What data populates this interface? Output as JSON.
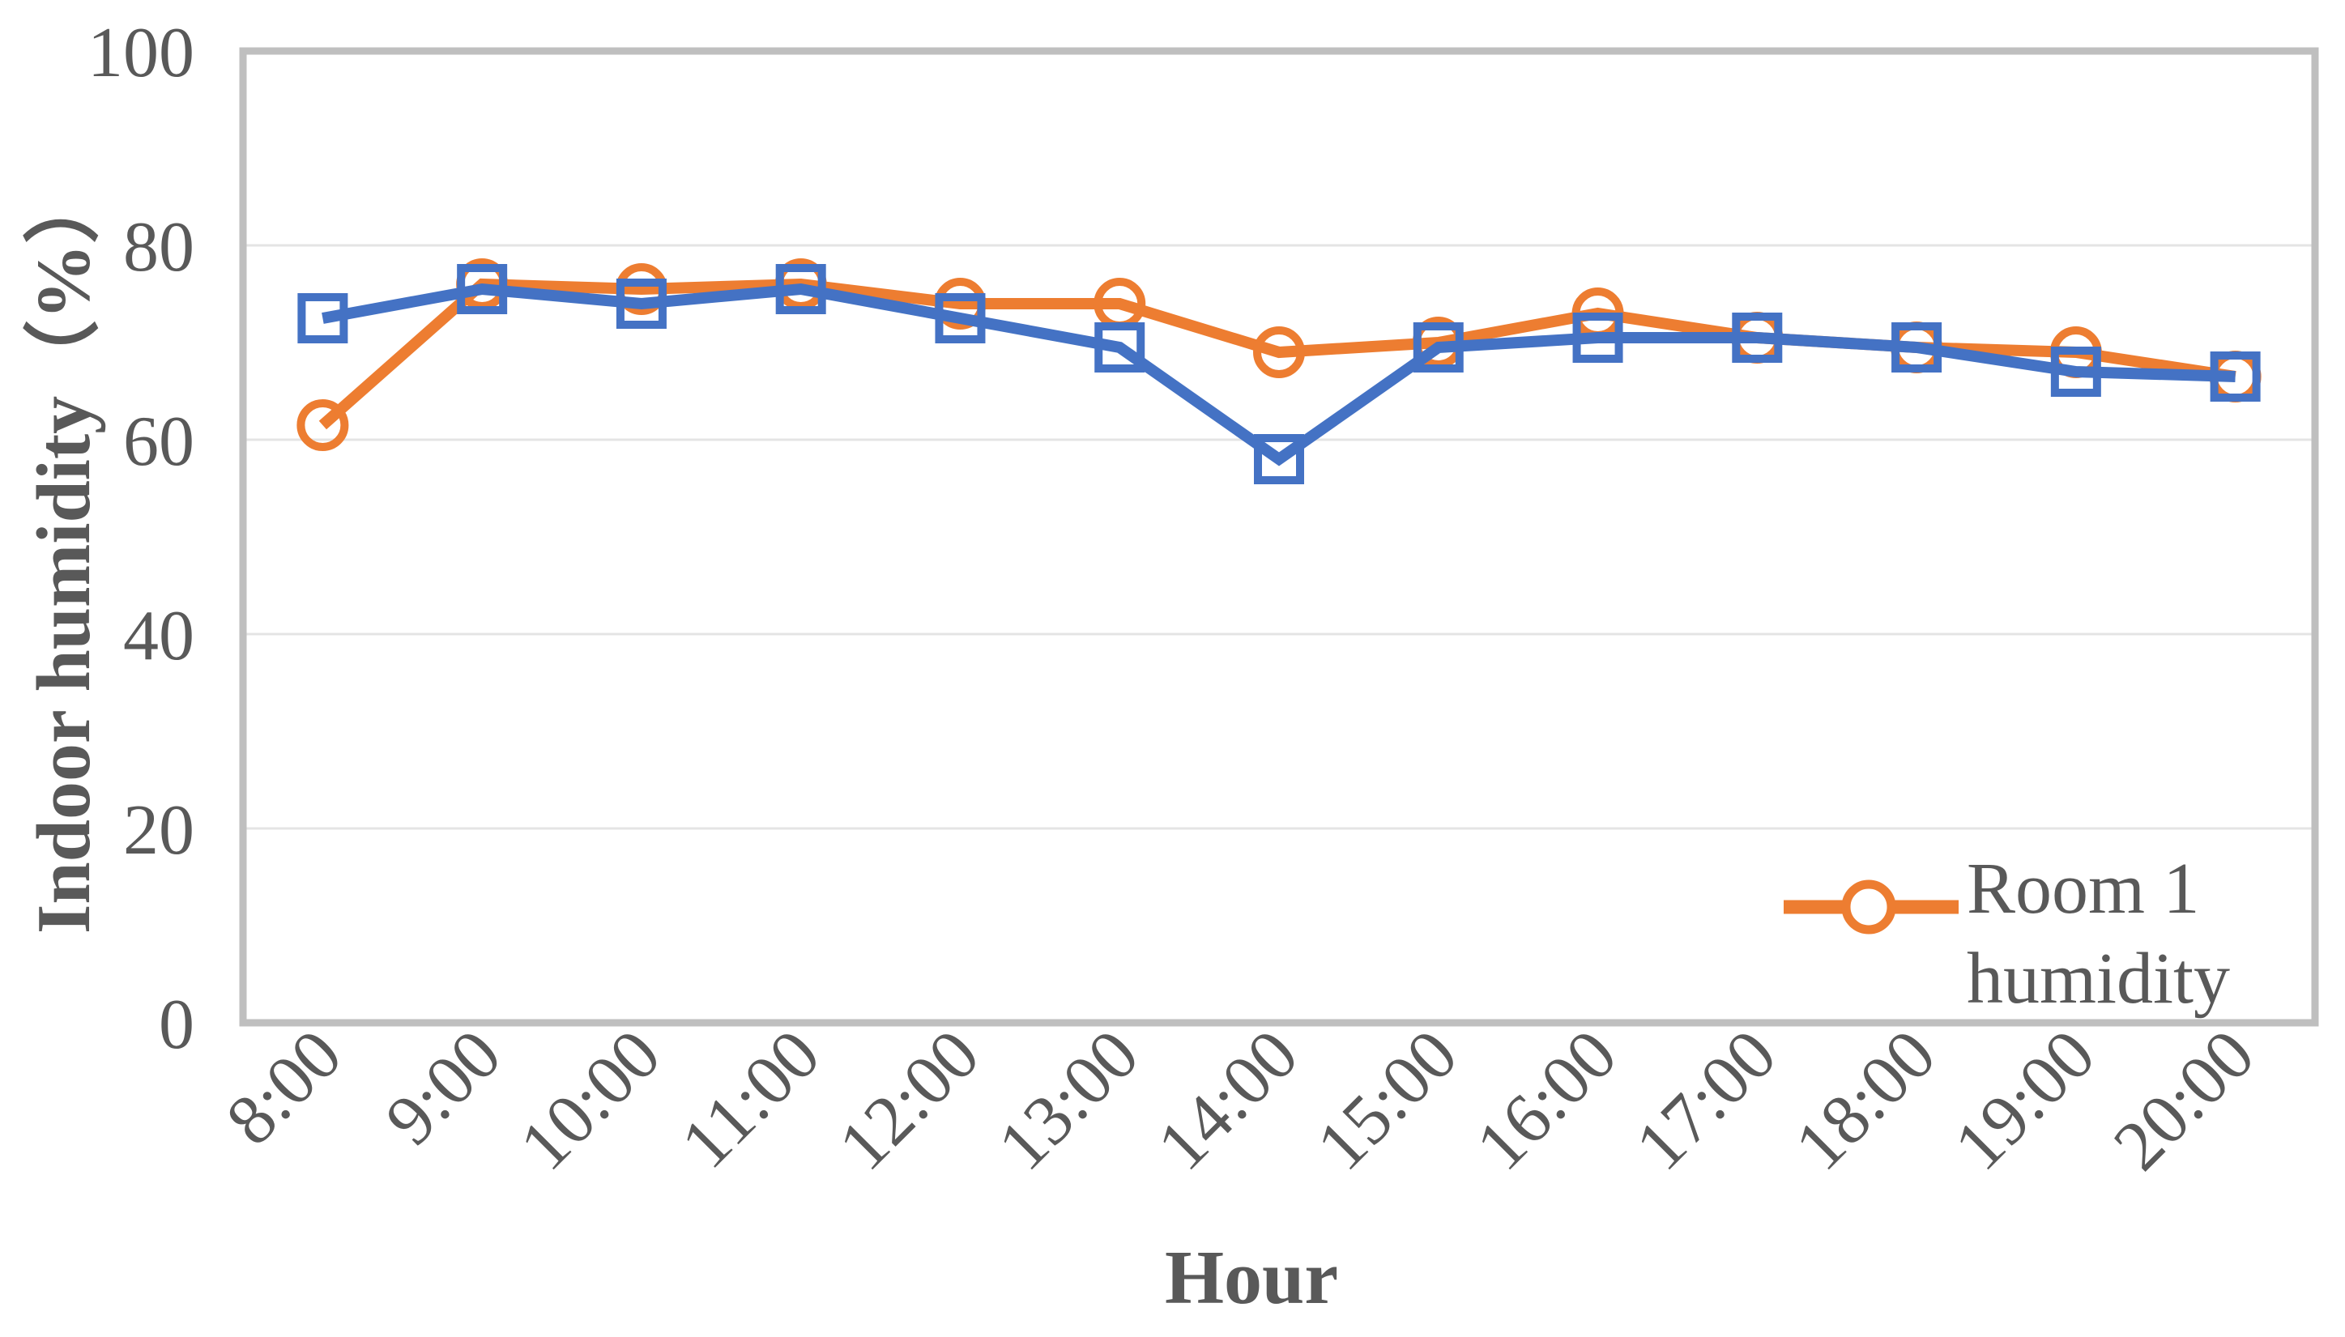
{
  "chart_data": {
    "type": "line",
    "title": "",
    "xlabel": "Hour",
    "ylabel": "Indoor humidity（%）",
    "categories": [
      "8:00",
      "9:00",
      "10:00",
      "11:00",
      "12:00",
      "13:00",
      "14:00",
      "15:00",
      "16:00",
      "17:00",
      "18:00",
      "19:00",
      "20:00"
    ],
    "series": [
      {
        "name": "Room 1 humidity",
        "color": "#ED7D31",
        "marker": "circle",
        "in_legend": true,
        "values": [
          61.5,
          76,
          75.5,
          76,
          74,
          74,
          69,
          70,
          73,
          70.5,
          69.5,
          69,
          66.5
        ]
      },
      {
        "name": "",
        "color": "#4472C4",
        "marker": "square",
        "in_legend": false,
        "values": [
          72.5,
          75.5,
          74,
          75.5,
          72.5,
          69.5,
          58,
          69.5,
          70.5,
          70.5,
          69.5,
          67,
          66.5
        ]
      }
    ],
    "ylim": [
      0,
      100
    ],
    "yticks": [
      0,
      20,
      40,
      60,
      80,
      100
    ],
    "grid": true,
    "legend_position": "inside-bottom-right",
    "legend_entries": [
      "Room 1 humidity"
    ]
  },
  "styles": {
    "axis_text_color": "#595959",
    "grid_color": "#E4E4E4",
    "border_color": "#BFBFBF",
    "background": "#FFFFFF"
  }
}
